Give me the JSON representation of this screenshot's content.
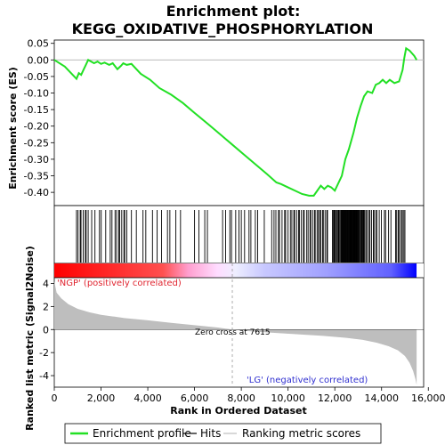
{
  "chart_data": {
    "type": "line",
    "title_line1": "Enrichment plot:",
    "title_line2": "KEGG_OXIDATIVE_PHOSPHORYLATION",
    "es_ylabel": "Enrichment score (ES)",
    "rank_ylabel": "Ranked list metric (Signal2Noise)",
    "xlabel": "Rank in Ordered Dataset",
    "xlim": [
      0,
      15800
    ],
    "es_ylim": [
      -0.44,
      0.06
    ],
    "metric_ylim": [
      -5,
      4.5
    ],
    "x_ticks": [
      0,
      2000,
      4000,
      6000,
      8000,
      10000,
      12000,
      14000,
      16000
    ],
    "x_tick_labels": [
      "0",
      "2,000",
      "4,000",
      "6,000",
      "8,000",
      "10,000",
      "12,000",
      "14,000",
      "16,000"
    ],
    "es_ticks": [
      0.05,
      0.0,
      -0.05,
      -0.1,
      -0.15,
      -0.2,
      -0.25,
      -0.3,
      -0.35,
      -0.4
    ],
    "es_tick_labels": [
      "0.05",
      "0.00",
      "-0.05",
      "-0.10",
      "-0.15",
      "-0.20",
      "-0.25",
      "-0.30",
      "-0.35",
      "-0.40"
    ],
    "metric_ticks": [
      4,
      2,
      0,
      -2,
      -4
    ],
    "metric_tick_labels": [
      "4",
      "2",
      "0",
      "-2",
      "-4"
    ],
    "positive_label": "'NGP' (positively correlated)",
    "negative_label": "'LG' (negatively correlated)",
    "zero_cross_label": "Zero cross at 7615",
    "zero_cross": 7615,
    "n_genes": 15500,
    "enrichment_curve": [
      [
        0,
        0.0
      ],
      [
        450,
        -0.02
      ],
      [
        950,
        -0.057
      ],
      [
        1050,
        -0.04
      ],
      [
        1150,
        -0.045
      ],
      [
        1250,
        -0.03
      ],
      [
        1350,
        -0.015
      ],
      [
        1450,
        0.0
      ],
      [
        1700,
        -0.01
      ],
      [
        1850,
        -0.005
      ],
      [
        2000,
        -0.012
      ],
      [
        2150,
        -0.008
      ],
      [
        2350,
        -0.015
      ],
      [
        2500,
        -0.01
      ],
      [
        2700,
        -0.028
      ],
      [
        2850,
        -0.018
      ],
      [
        2950,
        -0.01
      ],
      [
        3100,
        -0.015
      ],
      [
        3300,
        -0.012
      ],
      [
        3700,
        -0.042
      ],
      [
        4100,
        -0.06
      ],
      [
        4500,
        -0.085
      ],
      [
        5000,
        -0.105
      ],
      [
        5500,
        -0.13
      ],
      [
        6000,
        -0.16
      ],
      [
        6600,
        -0.195
      ],
      [
        7100,
        -0.225
      ],
      [
        7600,
        -0.255
      ],
      [
        8100,
        -0.285
      ],
      [
        8600,
        -0.315
      ],
      [
        9100,
        -0.345
      ],
      [
        9500,
        -0.37
      ],
      [
        9700,
        -0.375
      ],
      [
        10000,
        -0.385
      ],
      [
        10300,
        -0.395
      ],
      [
        10600,
        -0.405
      ],
      [
        10900,
        -0.41
      ],
      [
        11100,
        -0.41
      ],
      [
        11250,
        -0.395
      ],
      [
        11400,
        -0.38
      ],
      [
        11550,
        -0.39
      ],
      [
        11700,
        -0.38
      ],
      [
        11850,
        -0.385
      ],
      [
        12000,
        -0.395
      ],
      [
        12100,
        -0.38
      ],
      [
        12300,
        -0.35
      ],
      [
        12450,
        -0.3
      ],
      [
        12600,
        -0.27
      ],
      [
        12800,
        -0.22
      ],
      [
        12950,
        -0.175
      ],
      [
        13100,
        -0.14
      ],
      [
        13250,
        -0.11
      ],
      [
        13400,
        -0.095
      ],
      [
        13600,
        -0.1
      ],
      [
        13750,
        -0.075
      ],
      [
        13900,
        -0.07
      ],
      [
        14050,
        -0.06
      ],
      [
        14200,
        -0.07
      ],
      [
        14350,
        -0.06
      ],
      [
        14550,
        -0.07
      ],
      [
        14750,
        -0.065
      ],
      [
        14900,
        -0.03
      ],
      [
        14970,
        0.005
      ],
      [
        15050,
        0.035
      ],
      [
        15200,
        0.028
      ],
      [
        15400,
        0.012
      ],
      [
        15500,
        0.0
      ]
    ],
    "hit_clusters": [
      [
        950,
        1450,
        8
      ],
      [
        1600,
        2500,
        7
      ],
      [
        2600,
        3100,
        8
      ],
      [
        3300,
        4200,
        5
      ],
      [
        4400,
        5400,
        6
      ],
      [
        6000,
        6600,
        4
      ],
      [
        7200,
        7900,
        6
      ],
      [
        8000,
        8600,
        5
      ],
      [
        8700,
        9300,
        3
      ],
      [
        9400,
        10000,
        8
      ],
      [
        10100,
        10700,
        10
      ],
      [
        10800,
        11300,
        9
      ],
      [
        11350,
        11700,
        7
      ],
      [
        11900,
        12300,
        14
      ],
      [
        12300,
        12700,
        22
      ],
      [
        12700,
        13000,
        18
      ],
      [
        13000,
        13300,
        12
      ],
      [
        13350,
        13800,
        9
      ],
      [
        13900,
        14400,
        6
      ],
      [
        14600,
        15000,
        9
      ]
    ],
    "metric_profile": [
      [
        0,
        4.2
      ],
      [
        100,
        3.2
      ],
      [
        300,
        2.7
      ],
      [
        600,
        2.2
      ],
      [
        1000,
        1.8
      ],
      [
        1500,
        1.5
      ],
      [
        2000,
        1.28
      ],
      [
        3000,
        1.0
      ],
      [
        4000,
        0.8
      ],
      [
        5000,
        0.58
      ],
      [
        6000,
        0.38
      ],
      [
        7000,
        0.17
      ],
      [
        7615,
        0.0
      ],
      [
        8500,
        -0.17
      ],
      [
        9500,
        -0.3
      ],
      [
        10500,
        -0.42
      ],
      [
        11500,
        -0.55
      ],
      [
        12500,
        -0.72
      ],
      [
        13200,
        -0.9
      ],
      [
        13800,
        -1.15
      ],
      [
        14300,
        -1.45
      ],
      [
        14700,
        -1.8
      ],
      [
        15000,
        -2.3
      ],
      [
        15200,
        -2.9
      ],
      [
        15350,
        -3.6
      ],
      [
        15450,
        -4.3
      ],
      [
        15500,
        -4.8
      ]
    ],
    "legend": [
      "Enrichment profile",
      "Hits",
      "Ranking metric scores"
    ],
    "colors": {
      "curve": "#22e024",
      "hits": "#000000",
      "metric_fill": "#bebebe",
      "zero_line": "#bbbbbb",
      "bar_red": "#ff0000",
      "bar_blue": "#0000ff",
      "positive_text": "#e0242f",
      "negative_text": "#3030d0"
    }
  }
}
